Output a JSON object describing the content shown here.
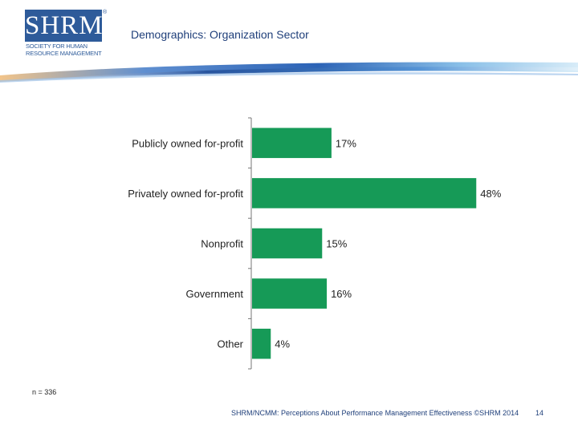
{
  "logo": {
    "mark": "SHRM",
    "registered": "®",
    "subtitle_line1": "SOCIETY FOR HUMAN",
    "subtitle_line2": "RESOURCE MANAGEMENT"
  },
  "title": "Demographics: Organization Sector",
  "colors": {
    "bar": "#169a57",
    "brand_blue": "#2e5b9a",
    "title_text": "#1f3f7a",
    "axis": "#777777"
  },
  "chart_data": {
    "type": "bar",
    "orientation": "horizontal",
    "categories": [
      "Publicly owned for-profit",
      "Privately owned for-profit",
      "Nonprofit",
      "Government",
      "Other"
    ],
    "values": [
      17,
      48,
      15,
      16,
      4
    ],
    "value_labels": [
      "17%",
      "48%",
      "15%",
      "16%",
      "4%"
    ],
    "xlim": [
      0,
      55
    ],
    "grid": false,
    "legend": "none"
  },
  "n_note": "n = 336",
  "footer": "SHRM/NCMM: Perceptions About Performance Management Effectiveness ©SHRM 2014",
  "page_number": "14"
}
